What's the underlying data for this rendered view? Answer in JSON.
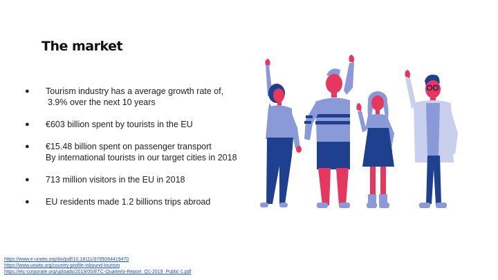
{
  "slide": {
    "title": "The market",
    "bullets": [
      {
        "lines": [
          "Tourism industry has a average growth rate of,",
          " 3.9% over the next 10 years"
        ]
      },
      {
        "lines": [
          "€603 billion spent by tourists in the EU"
        ]
      },
      {
        "lines": [
          "€15.48 billion spent on passenger transport",
          "By international tourists in our target cities in 2018"
        ]
      },
      {
        "lines": [
          "713 million visitors in the EU in 2018"
        ]
      },
      {
        "lines": [
          "EU residents made 1.2 billions trips abroad"
        ]
      }
    ],
    "bullet_symbol": "●",
    "sources": [
      "https://www.e-unwto.org/doi/pdf/10.18111/9789284419470",
      "https://www.unwto.org/country-profile-inbound-tourism",
      "https://etc-corporate.org/uploads/2019/05/ETC-Quarterly-Report_Q1-2019_Public-1.pdf"
    ]
  },
  "illustration": {
    "icon": "group-of-people-celebrating-illustration",
    "colors": {
      "navy": "#1f3f8f",
      "pink": "#e6375e",
      "periwinkle": "#8a9ad8",
      "light": "#c9d0ee",
      "dark": "#16224a"
    }
  }
}
